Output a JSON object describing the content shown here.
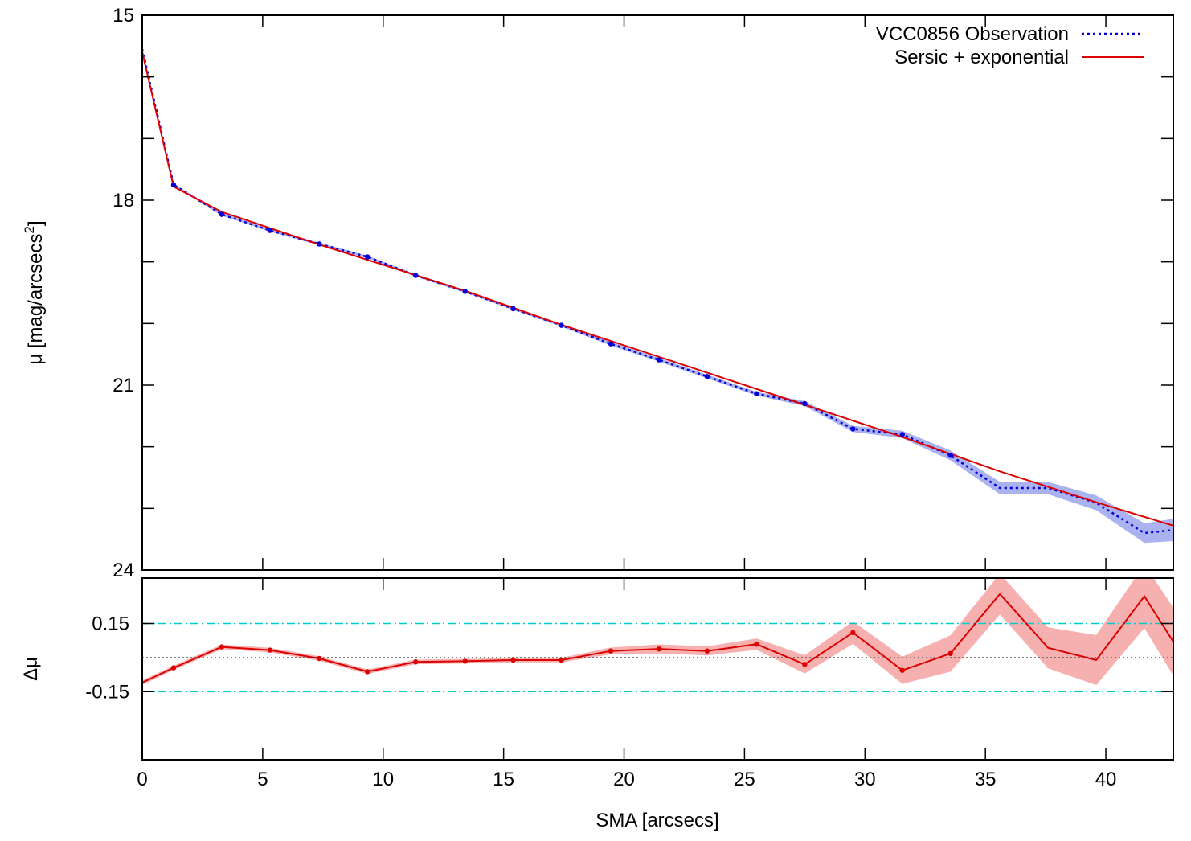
{
  "chart_data": [
    {
      "type": "line",
      "panel": "profile",
      "ylabel": "μ [mag/arcsecs",
      "ylabel_superscript": "2",
      "ylabel_close": "]",
      "xlim": [
        0,
        42.8
      ],
      "ylim": [
        15,
        24
      ],
      "y_inverted": true,
      "yticks": [
        15,
        18,
        21,
        24
      ],
      "yticks_minor": [
        16,
        17,
        19,
        20,
        22,
        23
      ],
      "legend_position": "top-right",
      "series": [
        {
          "name": "VCC0856 Observation",
          "style": "dotted",
          "color": "#0000dd",
          "band_color": "#aab2f0",
          "x": [
            0.0,
            1.3,
            3.3,
            5.3,
            7.35,
            9.35,
            11.35,
            13.4,
            15.4,
            17.4,
            19.45,
            21.45,
            23.45,
            25.5,
            27.5,
            29.5,
            31.55,
            33.55,
            35.6,
            37.6,
            39.6,
            41.6,
            42.8
          ],
          "y": [
            15.55,
            17.75,
            18.23,
            18.49,
            18.71,
            18.92,
            19.22,
            19.48,
            19.76,
            20.03,
            20.33,
            20.59,
            20.86,
            21.14,
            21.3,
            21.71,
            21.8,
            22.14,
            22.67,
            22.67,
            22.91,
            23.4,
            23.35
          ],
          "err": [
            0.02,
            0.02,
            0.02,
            0.02,
            0.02,
            0.02,
            0.02,
            0.02,
            0.02,
            0.02,
            0.03,
            0.03,
            0.03,
            0.03,
            0.04,
            0.05,
            0.06,
            0.08,
            0.1,
            0.1,
            0.12,
            0.16,
            0.18
          ]
        },
        {
          "name": "Sersic + exponential",
          "style": "solid",
          "color": "#dd0000",
          "x": [
            0.0,
            1.3,
            3.3,
            7.35,
            13.4,
            17.4,
            27.5,
            31.55,
            35.6,
            39.6,
            42.8
          ],
          "y": [
            15.6,
            17.78,
            18.19,
            18.72,
            19.47,
            20.02,
            21.32,
            21.84,
            22.4,
            22.9,
            23.28
          ]
        }
      ],
      "markers": {
        "color": "#0000dd",
        "x": [
          1.3,
          3.3,
          5.3,
          7.35,
          9.35,
          11.35,
          13.4,
          15.4,
          17.4,
          19.45,
          21.45,
          23.45,
          25.5,
          27.5,
          29.5,
          31.55,
          33.55
        ],
        "y": [
          17.75,
          18.23,
          18.49,
          18.71,
          18.92,
          19.22,
          19.48,
          19.76,
          20.03,
          20.33,
          20.59,
          20.86,
          21.14,
          21.3,
          21.71,
          21.8,
          22.14
        ]
      }
    },
    {
      "type": "line",
      "panel": "residuals",
      "xlabel": "SMA [arcsecs]",
      "ylabel": "Δμ",
      "xlim": [
        0,
        42.8
      ],
      "ylim": [
        -0.45,
        0.35
      ],
      "xticks": [
        0,
        5,
        10,
        15,
        20,
        25,
        30,
        35,
        40
      ],
      "yticks": [
        0.15,
        -0.15
      ],
      "reference_lines": [
        {
          "y": 0.15,
          "style": "dash-dot",
          "color": "#00cccc"
        },
        {
          "y": -0.15,
          "style": "dash-dot",
          "color": "#00cccc"
        },
        {
          "y": 0.0,
          "style": "dotted",
          "color": "#555555"
        }
      ],
      "series": [
        {
          "name": "",
          "color": "#dd0000",
          "band_color": "#f7b0b0",
          "x": [
            0.0,
            1.3,
            3.3,
            5.3,
            7.35,
            9.35,
            11.35,
            13.4,
            15.4,
            17.4,
            19.45,
            21.45,
            23.45,
            25.5,
            27.5,
            29.5,
            31.55,
            33.55,
            35.6,
            37.6,
            39.6,
            41.6,
            42.8
          ],
          "y": [
            -0.11,
            -0.045,
            0.047,
            0.033,
            -0.004,
            -0.062,
            -0.019,
            -0.016,
            -0.011,
            -0.011,
            0.029,
            0.038,
            0.029,
            0.059,
            -0.03,
            0.11,
            -0.056,
            0.018,
            0.28,
            0.043,
            -0.011,
            0.27,
            0.07
          ],
          "err": [
            0.01,
            0.01,
            0.01,
            0.01,
            0.01,
            0.01,
            0.01,
            0.01,
            0.01,
            0.01,
            0.015,
            0.02,
            0.02,
            0.025,
            0.04,
            0.05,
            0.06,
            0.08,
            0.09,
            0.09,
            0.11,
            0.14,
            0.15
          ],
          "markers_x": [
            1.3,
            3.3,
            5.3,
            7.35,
            9.35,
            11.35,
            13.4,
            15.4,
            17.4,
            19.45,
            21.45,
            23.45,
            25.5,
            27.5,
            29.5,
            31.55,
            33.55
          ]
        }
      ]
    }
  ]
}
